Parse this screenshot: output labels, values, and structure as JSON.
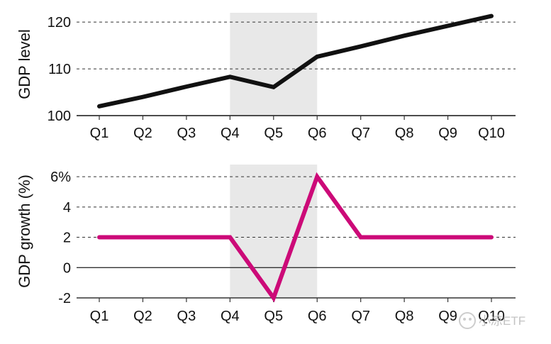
{
  "shaded_period": {
    "from": "Q4",
    "to": "Q6",
    "color": "#e8e8e8"
  },
  "watermark": "小凉ETF",
  "chart_data": [
    {
      "type": "line",
      "categories": [
        "Q1",
        "Q2",
        "Q3",
        "Q4",
        "Q5",
        "Q6",
        "Q7",
        "Q8",
        "Q9",
        "Q10"
      ],
      "series": [
        {
          "values": [
            102,
            104,
            106.2,
            108.3,
            106.1,
            112.6,
            114.8,
            117.1,
            119.2,
            121.3
          ],
          "color": "#111111"
        }
      ],
      "ylabel": "GDP level",
      "ylim": [
        100,
        122
      ],
      "yticks": [
        100,
        110,
        120
      ],
      "ytick_labels": [
        "100",
        "110",
        "120"
      ],
      "grid": "horizontal dashed"
    },
    {
      "type": "line",
      "categories": [
        "Q1",
        "Q2",
        "Q3",
        "Q4",
        "Q5",
        "Q6",
        "Q7",
        "Q8",
        "Q9",
        "Q10"
      ],
      "series": [
        {
          "values": [
            2,
            2,
            2,
            2,
            -2,
            6,
            2,
            2,
            2,
            2
          ],
          "color": "#cc0a78"
        }
      ],
      "ylabel": "GDP growth (%)",
      "ylim": [
        -2,
        6.8
      ],
      "yticks": [
        -2,
        0,
        2,
        4,
        6
      ],
      "ytick_labels": [
        "-2",
        "0",
        "2",
        "4",
        "6%"
      ],
      "grid": "horizontal dashed"
    }
  ]
}
